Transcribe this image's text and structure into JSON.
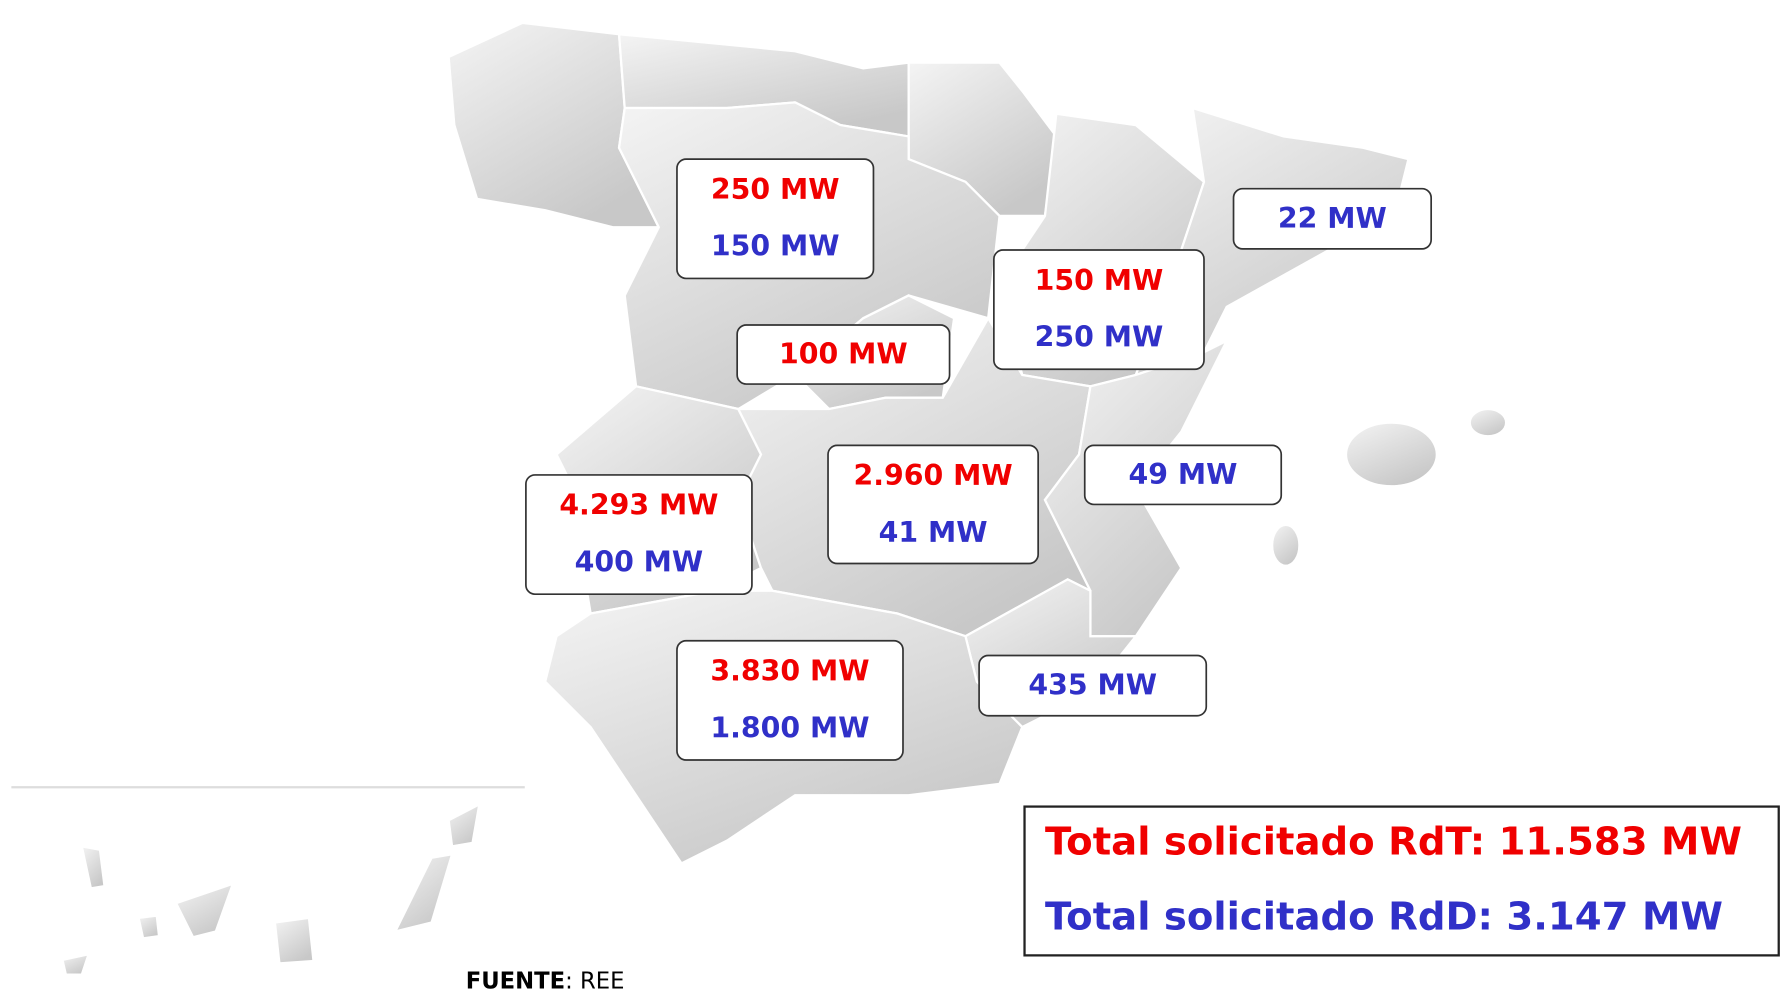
{
  "regions": [
    {
      "rdt": "250 MW",
      "rdd": "150 MW"
    },
    {
      "rdt": "100 MW"
    },
    {
      "rdt": "150 MW",
      "rdd": "250 MW"
    },
    {
      "rdd": "22 MW"
    },
    {
      "rdd": "49 MW"
    },
    {
      "rdt": "2.960 MW",
      "rdd": "41 MW"
    },
    {
      "rdt": "4.293 MW",
      "rdd": "400 MW"
    },
    {
      "rdt": "3.830 MW",
      "rdd": "1.800 MW"
    },
    {
      "rdd": "435 MW"
    }
  ],
  "totals": {
    "rdt": "Total solicitado RdT: 11.583 MW",
    "rdd": "Total solicitado RdD: 3.147 MW"
  },
  "source": {
    "label": "FUENTE",
    "value": ": REE"
  }
}
